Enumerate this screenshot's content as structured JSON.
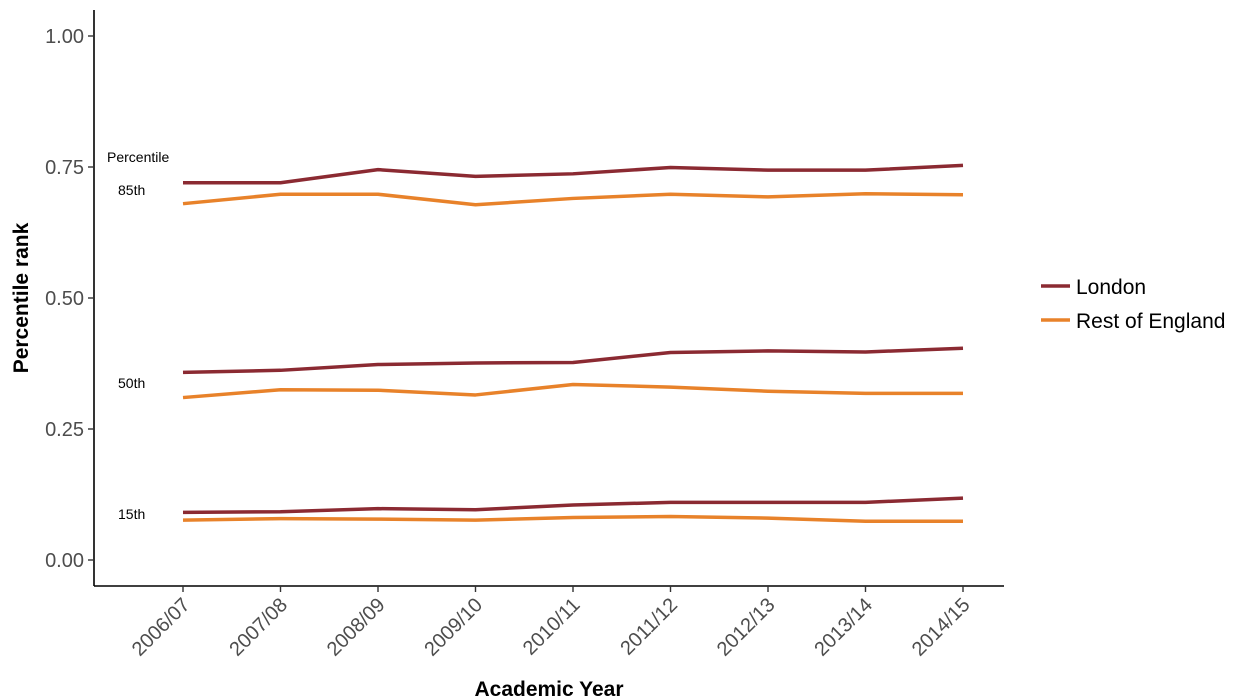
{
  "chart_data": {
    "type": "line",
    "xlabel": "Academic Year",
    "ylabel": "Percentile rank",
    "categories": [
      "2006/07",
      "2007/08",
      "2008/09",
      "2009/10",
      "2010/11",
      "2011/12",
      "2012/13",
      "2013/14",
      "2014/15"
    ],
    "ylim": [
      -0.05,
      1.05
    ],
    "yticks": [
      0.0,
      0.25,
      0.5,
      0.75,
      1.0
    ],
    "ytick_labels": [
      "0.00",
      "0.25",
      "0.50",
      "0.75",
      "1.00"
    ],
    "grid": false,
    "legend": {
      "placement": "right",
      "entries": [
        "London",
        "Rest of England"
      ]
    },
    "colors": {
      "London": "#8b2a32",
      "Rest of England": "#e8822a"
    },
    "annotations": {
      "title": "Percentile",
      "p85": "85th",
      "p50": "50th",
      "p15": "15th"
    },
    "series": [
      {
        "name": "London",
        "percentile": "85th",
        "values": [
          0.72,
          0.72,
          0.745,
          0.732,
          0.737,
          0.749,
          0.744,
          0.744,
          0.753
        ]
      },
      {
        "name": "Rest of England",
        "percentile": "85th",
        "values": [
          0.68,
          0.698,
          0.698,
          0.678,
          0.69,
          0.698,
          0.693,
          0.699,
          0.697
        ]
      },
      {
        "name": "London",
        "percentile": "50th",
        "values": [
          0.358,
          0.362,
          0.373,
          0.376,
          0.377,
          0.396,
          0.399,
          0.397,
          0.404
        ]
      },
      {
        "name": "Rest of England",
        "percentile": "50th",
        "values": [
          0.31,
          0.325,
          0.324,
          0.315,
          0.335,
          0.33,
          0.322,
          0.318,
          0.318
        ]
      },
      {
        "name": "London",
        "percentile": "15th",
        "values": [
          0.091,
          0.092,
          0.098,
          0.096,
          0.105,
          0.11,
          0.11,
          0.11,
          0.118
        ]
      },
      {
        "name": "Rest of England",
        "percentile": "15th",
        "values": [
          0.076,
          0.079,
          0.078,
          0.076,
          0.081,
          0.083,
          0.08,
          0.074,
          0.074
        ]
      }
    ]
  }
}
